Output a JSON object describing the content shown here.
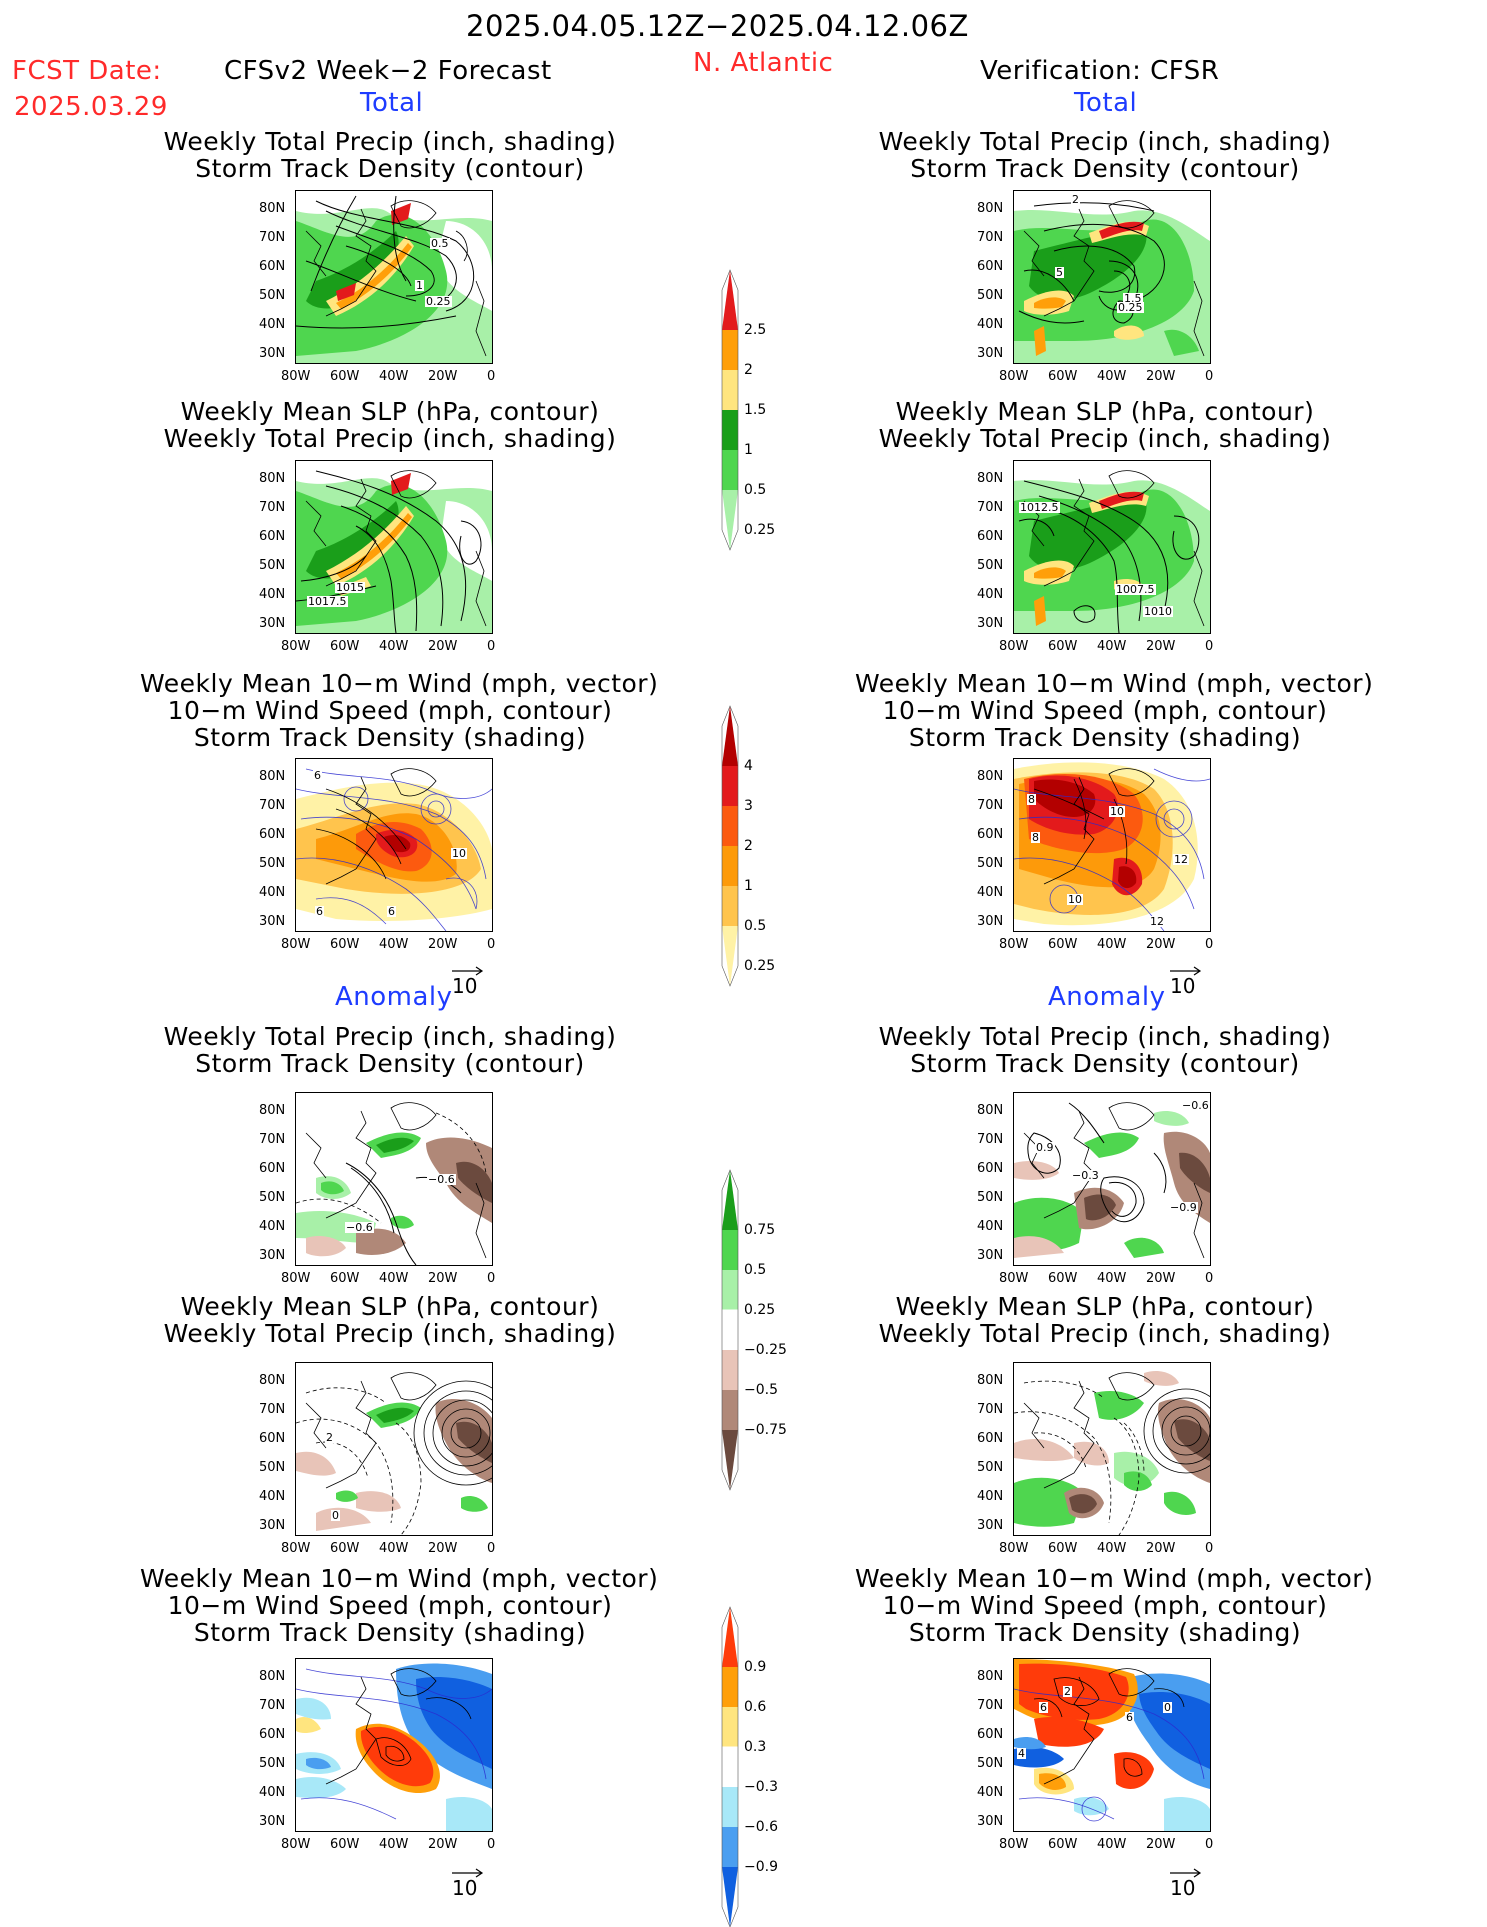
{
  "header": {
    "date_range": "2025.04.05.12Z−2025.04.12.06Z",
    "fcst_label": "FCST Date:",
    "fcst_date": "2025.03.29",
    "forecast_title": "CFSv2 Week−2 Forecast",
    "region": "N. Atlantic",
    "verification_title": "Verification: CFSR"
  },
  "sections": {
    "total": "Total",
    "anomaly": "Anomaly"
  },
  "panel_titles": {
    "precip_storm": [
      "Weekly Total Precip (inch, shading)",
      "Storm Track Density (contour)"
    ],
    "slp_precip": [
      "Weekly Mean SLP (hPa, contour)",
      "Weekly Total Precip (inch, shading)"
    ],
    "wind_storm": [
      "Weekly Mean 10−m Wind (mph, vector)",
      "10−m Wind Speed (mph, contour)",
      "Storm Track Density (shading)"
    ]
  },
  "axes": {
    "lat_ticks": [
      "80N",
      "70N",
      "60N",
      "50N",
      "40N",
      "30N"
    ],
    "lon_ticks": [
      "80W",
      "60W",
      "40W",
      "20W",
      "0"
    ]
  },
  "vector_reference": "10",
  "contour_labels": {
    "fc_total_precip": [
      "0.5",
      "1",
      "0.25"
    ],
    "vf_total_precip": [
      "2",
      "5",
      "1.5",
      "0.25"
    ],
    "fc_total_slp": [
      "1015",
      "1017.5"
    ],
    "vf_total_slp": [
      "1012.5",
      "1007.5",
      "1010"
    ],
    "fc_total_wind": [
      "6",
      "10",
      "6",
      "6"
    ],
    "vf_total_wind": [
      "8",
      "10",
      "8",
      "12",
      "10",
      "12"
    ],
    "fc_anom_precip": [
      "−0.6",
      "−0.6"
    ],
    "vf_anom_precip": [
      "−0.6",
      "0.9",
      "−0.3",
      "−0.9"
    ],
    "fc_anom_slp": [
      "2",
      "0"
    ],
    "vf_anom_wind": [
      "2",
      "6",
      "0",
      "6",
      "4"
    ]
  },
  "colorbars": {
    "precip_total": {
      "labels": [
        "2.5",
        "2",
        "1.5",
        "1",
        "0.5",
        "0.25"
      ],
      "colors": [
        "#e31a1c",
        "#ff9f0a",
        "#ffe57f",
        "#1a9e1a",
        "#4fd64f",
        "#a8f0a8"
      ]
    },
    "storm_total": {
      "labels": [
        "4",
        "3",
        "2",
        "1",
        "0.5",
        "0.25"
      ],
      "colors": [
        "#b30000",
        "#e31a1c",
        "#fc5a0f",
        "#fd9a0a",
        "#ffc44d",
        "#fff2a6"
      ]
    },
    "precip_anom": {
      "labels": [
        "0.75",
        "0.5",
        "0.25",
        "−0.25",
        "−0.5",
        "−0.75"
      ],
      "colors": [
        "#1a9e1a",
        "#4fd64f",
        "#a8f0a8",
        "#ffffff",
        "#e8c4b8",
        "#b08878",
        "#6b4a3e"
      ]
    },
    "storm_anom": {
      "labels": [
        "0.9",
        "0.6",
        "0.3",
        "−0.3",
        "−0.6",
        "−0.9"
      ],
      "colors": [
        "#ff3b0a",
        "#ff9f0a",
        "#ffe57f",
        "#ffffff",
        "#a8e8f8",
        "#4a9ef0",
        "#1060e0"
      ]
    }
  }
}
